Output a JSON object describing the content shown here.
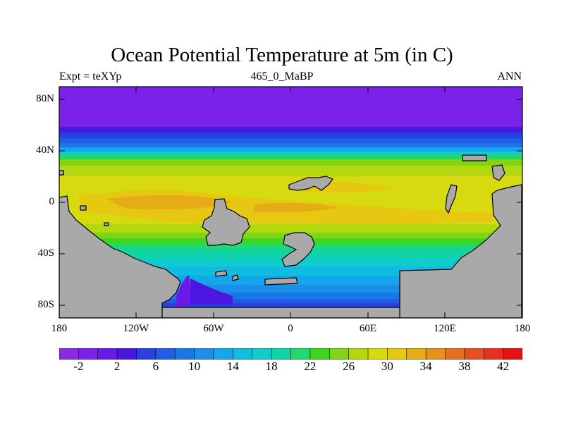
{
  "header": {
    "title": "Ocean Potential Temperature at 5m (in C)",
    "left_label": "Expt = teXYp",
    "center_label": "465_0_MaBP",
    "right_label": "ANN"
  },
  "map": {
    "lat_ticks": [
      "80N",
      "40N",
      "0",
      "40S",
      "80S"
    ],
    "lon_ticks": [
      "180",
      "120W",
      "60W",
      "0",
      "60E",
      "120E",
      "180"
    ],
    "land_color": "#a9a9a9",
    "lat_range": [
      -90,
      90
    ],
    "lon_range": [
      -180,
      180
    ]
  },
  "colorbar": {
    "levels": [
      -4,
      -2,
      0,
      2,
      4,
      6,
      8,
      10,
      12,
      14,
      16,
      18,
      20,
      22,
      24,
      26,
      28,
      30,
      32,
      34,
      36,
      38,
      40,
      42,
      44
    ],
    "labels": [
      "-2",
      "2",
      "6",
      "10",
      "14",
      "18",
      "22",
      "26",
      "30",
      "34",
      "38",
      "42"
    ],
    "colors": [
      "#8a2be2",
      "#7a22e8",
      "#6a1ae8",
      "#4b16e0",
      "#2a3fe0",
      "#1e5ee6",
      "#1a78e6",
      "#1c90e8",
      "#14a6e8",
      "#10bce0",
      "#10cccc",
      "#10d4a6",
      "#20d870",
      "#40d41c",
      "#80d414",
      "#b4d810",
      "#d8da10",
      "#e6c812",
      "#e6ac16",
      "#e6901a",
      "#e6701e",
      "#e65020",
      "#e63020",
      "#e61010"
    ]
  }
}
